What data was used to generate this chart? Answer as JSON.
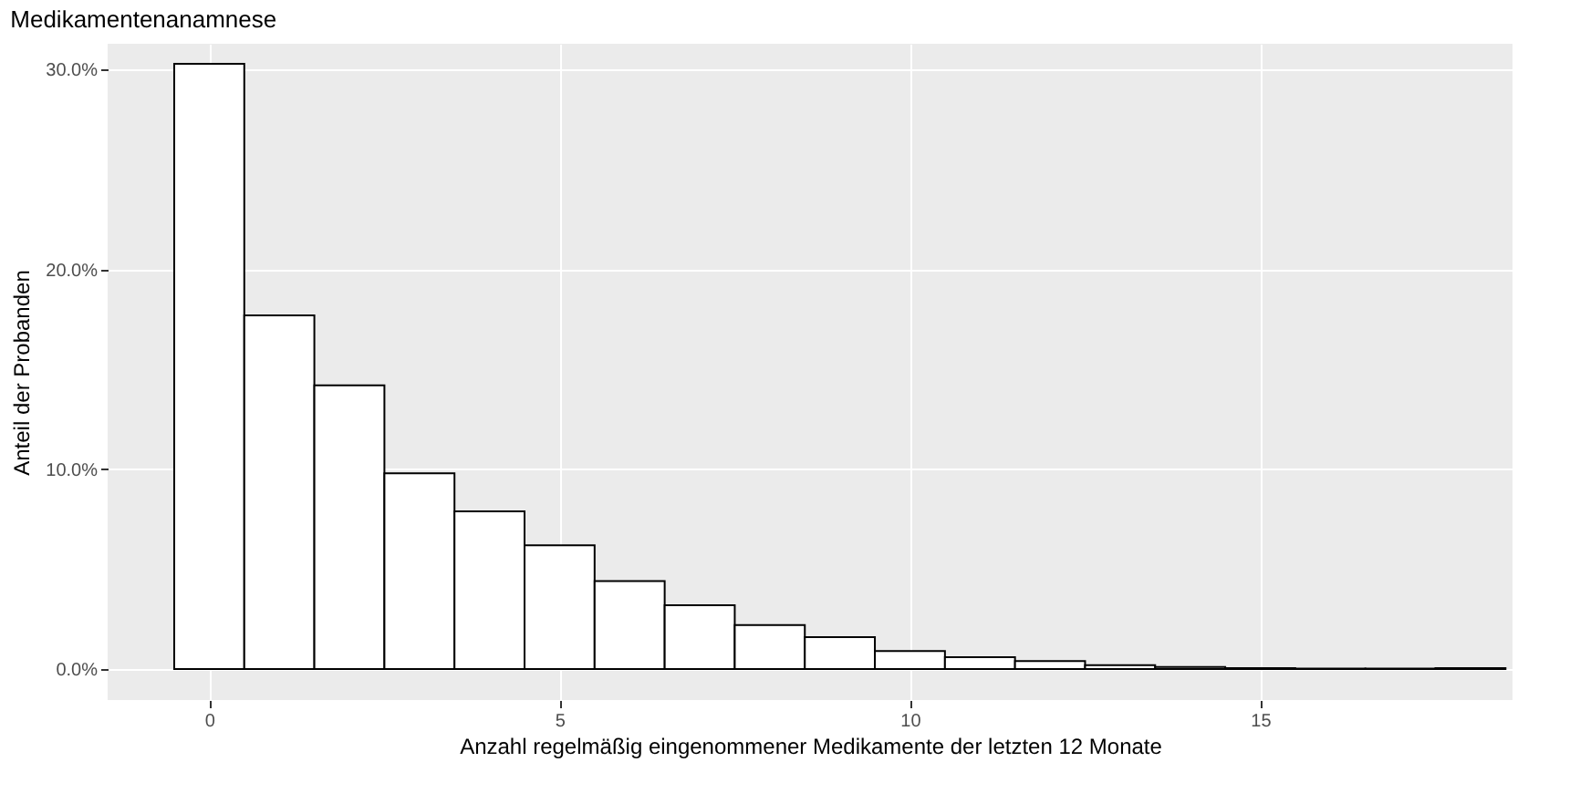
{
  "chart_data": {
    "type": "histogram",
    "title": "Medikamentenanamnese",
    "xlabel": "Anzahl regelmäßig eingenommener Medikamente der letzten 12 Monate",
    "ylabel": "Anteil der Probanden",
    "bins": [
      -0.5,
      0.5,
      1.5,
      2.5,
      3.5,
      4.5,
      5.5,
      6.5,
      7.5,
      8.5,
      9.5,
      10.5,
      11.5,
      12.5,
      13.5,
      14.5,
      15.5,
      16.5,
      17.5,
      18.5
    ],
    "values": [
      30.3,
      17.7,
      14.2,
      9.8,
      7.9,
      6.2,
      4.4,
      3.2,
      2.2,
      1.6,
      0.9,
      0.6,
      0.4,
      0.2,
      0.1,
      0.05,
      0.02,
      0.02,
      0.05
    ],
    "color": "#ffffff",
    "xlim": [
      -1.45,
      18.6
    ],
    "xticks": [
      0,
      5,
      10,
      15
    ],
    "ylim": [
      -1.55,
      31.3
    ],
    "yticks": [
      {
        "value": 0,
        "label": "0.0%"
      },
      {
        "value": 10,
        "label": "10.0%"
      },
      {
        "value": 20,
        "label": "20.0%"
      },
      {
        "value": 30,
        "label": "30.0%"
      }
    ],
    "grid": true
  }
}
